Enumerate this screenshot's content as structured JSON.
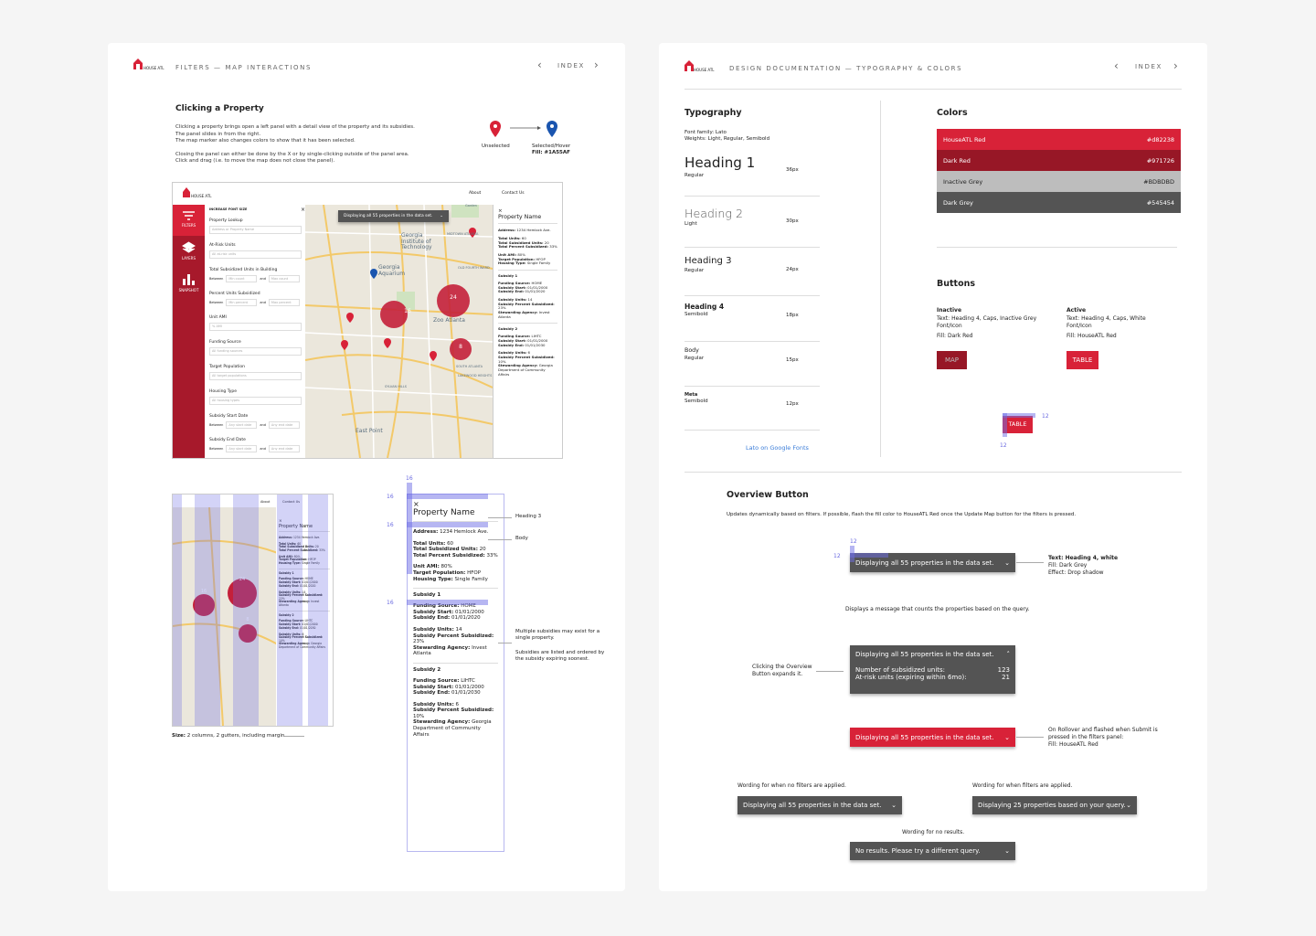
{
  "left": {
    "logo": "HOUSE ATL",
    "header": "FILTERS — MAP INTERACTIONS",
    "nav": "INDEX",
    "title": "Clicking a Property",
    "description": [
      "Clicking a property brings open a left panel with a detail view of the property and its subsidies.",
      "The panel slides in from the right.",
      "The map marker also changes colors to show that it has been selected.",
      "Closing the panel can either be done by the X or by single-clicking outside of the panel area.",
      "Click and drag (i.e. to move the map does not close the panel)."
    ],
    "markers": {
      "unselected": "Unselected",
      "selected": "Selected/Hover",
      "fill": "Fill: #1A55AF"
    },
    "mockup": {
      "nav": [
        "About",
        "Contact Us"
      ],
      "sidebar": [
        "FILTERS",
        "LAYERS",
        "SNAPSHOT"
      ],
      "font_size": "INCREASE FONT SIZE",
      "filters": [
        {
          "label": "Property Lookup",
          "placeholder": "Address or Property Name"
        },
        {
          "label": "At-Risk Units",
          "placeholder": "All at-risk units"
        },
        {
          "label": "Total Subsidized Units in Building",
          "between": "Between",
          "min": "Min count",
          "and": "and",
          "max": "Max count"
        },
        {
          "label": "Percent Units Subsidized",
          "between": "Between",
          "min": "Min percent",
          "and": "and",
          "max": "Max percent"
        },
        {
          "label": "Unit AMI",
          "placeholder": "% AMI"
        },
        {
          "label": "Funding Source",
          "placeholder": "All funding sources"
        },
        {
          "label": "Target Population",
          "placeholder": "All target populations"
        },
        {
          "label": "Housing Type",
          "placeholder": "All housing types"
        },
        {
          "label": "Subsidy Start Date",
          "between": "Between",
          "min": "Any start date",
          "and": "and",
          "max": "Any end date"
        },
        {
          "label": "Subsidy End Date",
          "between": "Between",
          "min": "Any start date",
          "and": "and",
          "max": "Any end date"
        }
      ],
      "overview": "Displaying all 55 properties in the data set.",
      "clusters": [
        "16",
        "24",
        "8"
      ],
      "map_labels": [
        "Garden",
        "Georgia Institute of Technology",
        "MIDTOWN ATLANTA",
        "Georgia Aquarium",
        "OLD FOURTH WARD",
        "Zoo Atlanta",
        "SOUTH ATLANTA",
        "LAKEWOOD HEIGHTS",
        "SYLVAN HILLS",
        "East Point"
      ]
    },
    "detail": {
      "title": "Property Name",
      "groups": [
        [
          {
            "label": "Address:",
            "value": "1234 Hemlock Ave."
          }
        ],
        [
          {
            "label": "Total Units:",
            "value": "60"
          },
          {
            "label": "Total Subsidized Units:",
            "value": "20"
          },
          {
            "label": "Total Percent Subsidized:",
            "value": "33%"
          }
        ],
        [
          {
            "label": "Unit AMI:",
            "value": "80%"
          },
          {
            "label": "Target Population:",
            "value": "HFOP"
          },
          {
            "label": "Housing Type:",
            "value": "Single Family"
          }
        ]
      ],
      "subsidies": [
        {
          "name": "Subsidy 1",
          "groups": [
            [
              {
                "label": "Funding Source:",
                "value": "HOME"
              },
              {
                "label": "Subsidy Start:",
                "value": "01/01/2000"
              },
              {
                "label": "Subsidy End:",
                "value": "01/01/2020"
              }
            ],
            [
              {
                "label": "Subsidy Units:",
                "value": "14"
              },
              {
                "label": "Subsidy Percent Subsidized:",
                "value": "23%"
              },
              {
                "label": "Stewarding Agency:",
                "value": "Invest Atlanta"
              }
            ]
          ]
        },
        {
          "name": "Subsidy 2",
          "groups": [
            [
              {
                "label": "Funding Source:",
                "value": "LIHTC"
              },
              {
                "label": "Subsidy Start:",
                "value": "01/01/2000"
              },
              {
                "label": "Subsidy End:",
                "value": "01/01/2030"
              }
            ],
            [
              {
                "label": "Subsidy Units:",
                "value": "6"
              },
              {
                "label": "Subsidy Percent Subsidized:",
                "value": "10%"
              },
              {
                "label": "Stewarding Agency:",
                "value": "Georgia Department of Community Affairs"
              }
            ]
          ]
        }
      ]
    },
    "grid_note": {
      "label": "Size:",
      "text": "2 columns, 2 gutters, including margin"
    },
    "spec": {
      "measure": "16",
      "notes": [
        "Heading 3",
        "Body",
        "Multiple subsidies may exist for a single property.",
        "Subsidies are listed and ordered by the subsidy expiring soonest."
      ]
    }
  },
  "right": {
    "logo": "HOUSE ATL",
    "header": "DESIGN DOCUMENTATION — TYPOGRAPHY & COLORS",
    "nav": "INDEX",
    "typography": {
      "title": "Typography",
      "family": "Font family: Lato",
      "weights": "Weights: Light, Regular, Semibold",
      "styles": [
        {
          "name": "Heading 1",
          "weight": "Regular",
          "size": "36px"
        },
        {
          "name": "Heading 2",
          "weight": "Light",
          "size": "30px"
        },
        {
          "name": "Heading 3",
          "weight": "Regular",
          "size": "24px"
        },
        {
          "name": "Heading 4",
          "weight": "Semibold",
          "size": "18px"
        },
        {
          "name": "Body",
          "weight": "Regular",
          "size": "15px"
        },
        {
          "name": "Meta",
          "weight": "Semibold",
          "size": "12px"
        }
      ],
      "link": "Lato on Google Fonts"
    },
    "colors": {
      "title": "Colors",
      "swatches": [
        {
          "name": "HouseATL Red",
          "hex": "#d82238"
        },
        {
          "name": "Dark Red",
          "hex": "#971726"
        },
        {
          "name": "Inactive Grey",
          "hex": "#BDBDBD"
        },
        {
          "name": "Dark Grey",
          "hex": "#545454"
        }
      ]
    },
    "buttons": {
      "title": "Buttons",
      "inactive": {
        "state": "Inactive",
        "text": "Text: Heading 4, Caps, Inactive Grey Font/Icon",
        "fill": "Fill: Dark Red",
        "button": "MAP"
      },
      "active": {
        "state": "Active",
        "text": "Text: Heading 4, Caps, White Font/Icon",
        "fill": "Fill: HouseATL Red",
        "button": "TABLE"
      },
      "spec_measure": "12"
    },
    "overview": {
      "title": "Overview Button",
      "description": "Updates dynamically based on filters. If possible, flash the fill color to HouseATL Red once the Update Map button for the filters is pressed.",
      "button": "Displaying all 55 properties in the data set.",
      "measure": "12",
      "notes": [
        "Text: Heading 4, white",
        "Fill: Dark Grey",
        "Effect: Drop shadow"
      ],
      "caption": "Displays a message that counts the properties based on the query.",
      "expand_note": "Clicking the Overview Button expands it.",
      "expanded_rows": [
        {
          "label": "Number of subsidized units:",
          "value": "123"
        },
        {
          "label": "At-risk units (expiring within 6mo):",
          "value": "21"
        }
      ],
      "rollover_note": "On Rollover and flashed when Submit is pressed in the filters panel:",
      "rollover_fill": "Fill: HouseATL Red",
      "wordings": [
        {
          "caption": "Wording for when no filters are applied.",
          "button": "Displaying all 55 properties in the data set."
        },
        {
          "caption": "Wording for when filters are applied.",
          "button": "Displaying 25 properties based on your query."
        },
        {
          "caption": "Wording for no results.",
          "button": "No results. Please try a different query."
        }
      ]
    }
  }
}
